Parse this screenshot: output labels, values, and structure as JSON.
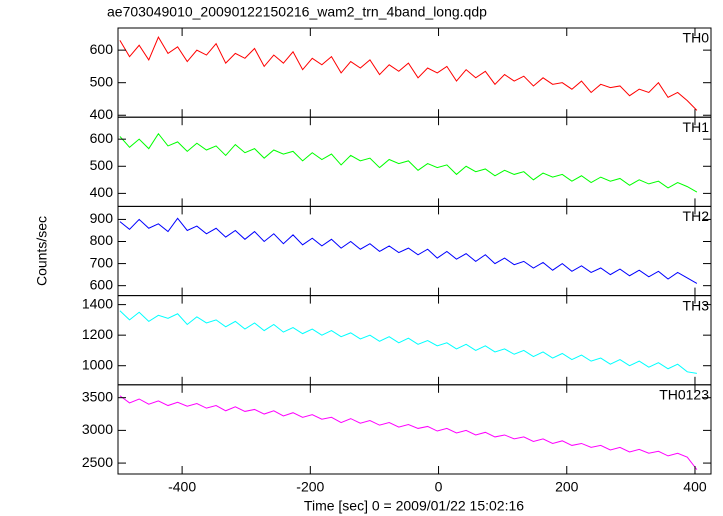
{
  "chart_data": {
    "type": "line",
    "title": "ae703049010_20090122150216_wam2_trn_4band_long.qdp",
    "xlabel": "Time [sec] 0 = 2009/01/22 15:02:16",
    "ylabel": "Counts/sec",
    "xlim": [
      -500,
      425
    ],
    "xticks": [
      -400,
      -200,
      0,
      200,
      400
    ],
    "x": [
      -497,
      -482,
      -467,
      -452,
      -437,
      -422,
      -407,
      -392,
      -377,
      -362,
      -347,
      -332,
      -317,
      -302,
      -287,
      -272,
      -257,
      -242,
      -227,
      -212,
      -197,
      -182,
      -167,
      -152,
      -137,
      -122,
      -107,
      -92,
      -77,
      -62,
      -47,
      -32,
      -17,
      -2,
      13,
      28,
      43,
      58,
      73,
      88,
      103,
      118,
      133,
      148,
      163,
      178,
      193,
      208,
      223,
      238,
      253,
      268,
      283,
      298,
      313,
      328,
      343,
      358,
      373,
      388,
      403
    ],
    "series": [
      {
        "name": "TH0",
        "color": "#ff0000",
        "ylim": [
          394,
          668
        ],
        "yticks": [
          400,
          500,
          600
        ],
        "values": [
          630,
          580,
          615,
          570,
          640,
          590,
          610,
          565,
          600,
          585,
          620,
          560,
          590,
          575,
          605,
          550,
          585,
          560,
          595,
          540,
          575,
          555,
          580,
          530,
          565,
          545,
          570,
          525,
          555,
          535,
          560,
          515,
          545,
          530,
          550,
          505,
          540,
          515,
          535,
          495,
          525,
          505,
          520,
          490,
          515,
          495,
          500,
          480,
          505,
          470,
          495,
          485,
          490,
          460,
          480,
          470,
          500,
          455,
          470,
          445,
          415
        ]
      },
      {
        "name": "TH1",
        "color": "#00ff00",
        "ylim": [
          352,
          681
        ],
        "yticks": [
          400,
          500,
          600
        ],
        "values": [
          610,
          570,
          600,
          565,
          620,
          575,
          590,
          555,
          585,
          560,
          575,
          540,
          580,
          550,
          565,
          530,
          560,
          545,
          555,
          520,
          550,
          525,
          545,
          505,
          540,
          520,
          530,
          495,
          525,
          510,
          520,
          485,
          510,
          495,
          505,
          470,
          500,
          480,
          490,
          465,
          485,
          470,
          480,
          450,
          475,
          460,
          470,
          445,
          465,
          440,
          460,
          445,
          455,
          430,
          450,
          435,
          445,
          420,
          440,
          425,
          405
        ]
      },
      {
        "name": "TH2",
        "color": "#0000ff",
        "ylim": [
          555,
          959
        ],
        "yticks": [
          600,
          700,
          800,
          900
        ],
        "values": [
          890,
          855,
          900,
          860,
          880,
          845,
          905,
          850,
          870,
          835,
          860,
          820,
          850,
          810,
          845,
          800,
          835,
          790,
          830,
          785,
          815,
          780,
          810,
          770,
          800,
          765,
          790,
          755,
          780,
          750,
          770,
          740,
          765,
          725,
          755,
          720,
          745,
          710,
          740,
          700,
          725,
          695,
          710,
          680,
          705,
          670,
          700,
          665,
          690,
          660,
          680,
          650,
          675,
          645,
          670,
          640,
          665,
          630,
          660,
          635,
          610
        ]
      },
      {
        "name": "TH3",
        "color": "#00ffff",
        "ylim": [
          875,
          1459
        ],
        "yticks": [
          1000,
          1200,
          1400
        ],
        "values": [
          1360,
          1300,
          1350,
          1290,
          1330,
          1310,
          1340,
          1270,
          1320,
          1280,
          1300,
          1255,
          1290,
          1240,
          1280,
          1230,
          1270,
          1220,
          1250,
          1210,
          1240,
          1200,
          1230,
          1190,
          1215,
          1175,
          1200,
          1160,
          1190,
          1150,
          1180,
          1140,
          1165,
          1130,
          1150,
          1110,
          1140,
          1100,
          1130,
          1090,
          1110,
          1075,
          1100,
          1060,
          1090,
          1050,
          1080,
          1040,
          1070,
          1030,
          1050,
          1010,
          1040,
          1000,
          1030,
          990,
          1020,
          980,
          1010,
          960,
          950
        ]
      },
      {
        "name": "TH0123",
        "color": "#ff00ff",
        "ylim": [
          2333,
          3697
        ],
        "yticks": [
          2500,
          3000,
          3500
        ],
        "values": [
          3530,
          3420,
          3480,
          3400,
          3450,
          3380,
          3430,
          3370,
          3410,
          3340,
          3380,
          3300,
          3360,
          3290,
          3320,
          3250,
          3300,
          3220,
          3270,
          3200,
          3240,
          3170,
          3200,
          3120,
          3180,
          3110,
          3150,
          3080,
          3120,
          3050,
          3090,
          3030,
          3060,
          2990,
          3030,
          2960,
          3000,
          2930,
          2970,
          2900,
          2930,
          2870,
          2900,
          2830,
          2870,
          2800,
          2840,
          2770,
          2800,
          2740,
          2770,
          2700,
          2740,
          2670,
          2710,
          2650,
          2680,
          2610,
          2650,
          2590,
          2400
        ]
      }
    ]
  }
}
